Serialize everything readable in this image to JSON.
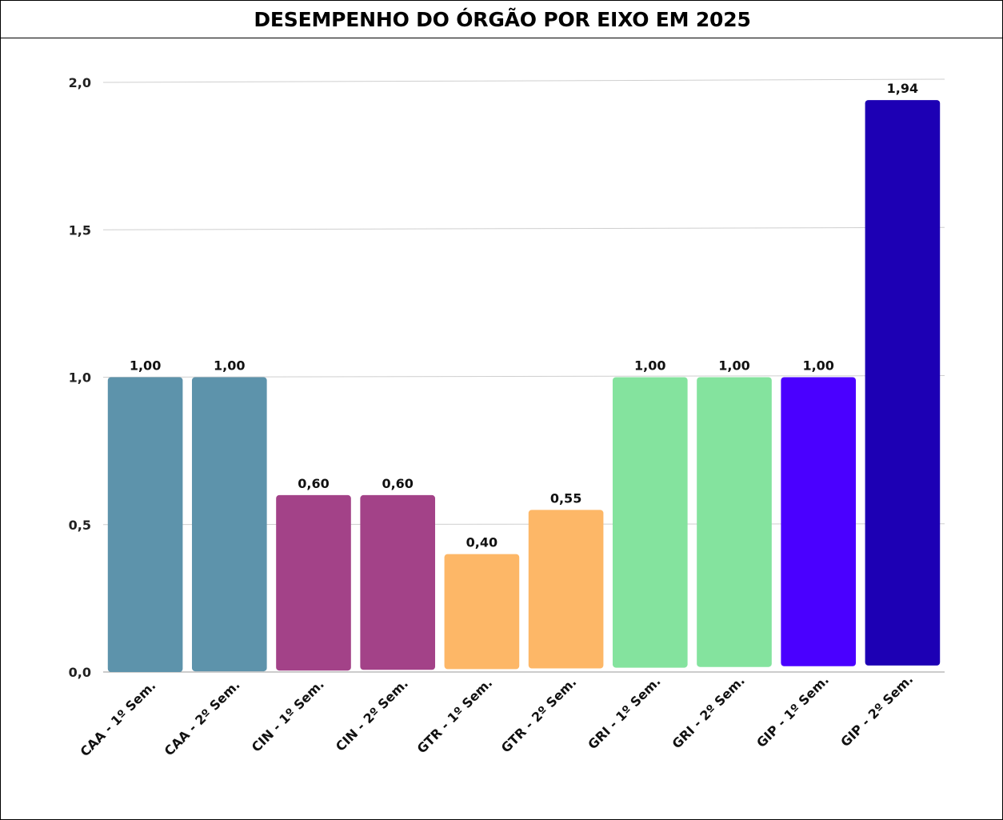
{
  "header": {
    "title": "DESEMPENHO DO ÓRGÃO POR EIXO EM 2025"
  },
  "chart_data": {
    "type": "bar",
    "title": "DESEMPENHO DO ÓRGÃO POR EIXO EM 2025",
    "xlabel": "",
    "ylabel": "",
    "ylim": [
      0,
      2.0
    ],
    "yticks": [
      "0,0",
      "0,5",
      "1,0",
      "1,5",
      "2,0"
    ],
    "grid": true,
    "categories": [
      "CAA - 1º Sem.",
      "CAA - 2º Sem.",
      "CIN - 1º Sem.",
      "CIN - 2º Sem.",
      "GTR - 1º Sem.",
      "GTR - 2º Sem.",
      "GRI - 1º Sem.",
      "GRI - 2º Sem.",
      "GIP - 1º Sem.",
      "GIP - 2º Sem."
    ],
    "values": [
      1.0,
      1.0,
      0.6,
      0.6,
      0.4,
      0.55,
      1.0,
      1.0,
      1.0,
      1.94
    ],
    "value_labels": [
      "1,00",
      "1,00",
      "0,60",
      "0,60",
      "0,40",
      "0,55",
      "1,00",
      "1,00",
      "1,00",
      "1,94"
    ],
    "colors": [
      "#5d93ab",
      "#5d93ab",
      "#a34288",
      "#a34288",
      "#fdb767",
      "#fdb767",
      "#84e39e",
      "#84e39e",
      "#4a00ff",
      "#1d00b4"
    ]
  }
}
